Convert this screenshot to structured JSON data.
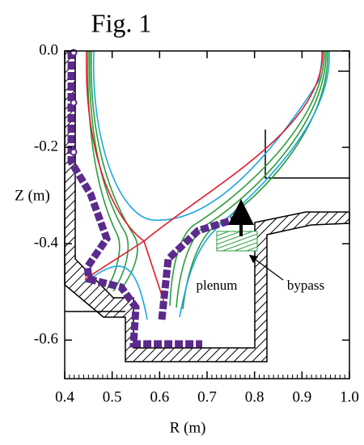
{
  "chart_data": {
    "type": "diagram",
    "title": "Fig. 1",
    "x_label": "R (m)",
    "y_label": "Z (m)",
    "xlim": [
      0.4,
      1.0
    ],
    "ylim": [
      -0.68,
      0.0
    ],
    "xticks": [
      0.4,
      0.5,
      0.6,
      0.7,
      0.8,
      0.9,
      {
        "value": 1.0,
        "label": "1.0"
      }
    ],
    "yticks": [
      {
        "value": 0.0,
        "label": "0.0"
      },
      -0.2,
      -0.4,
      -0.6
    ],
    "annotations": [
      "plenum",
      "bypass"
    ]
  }
}
